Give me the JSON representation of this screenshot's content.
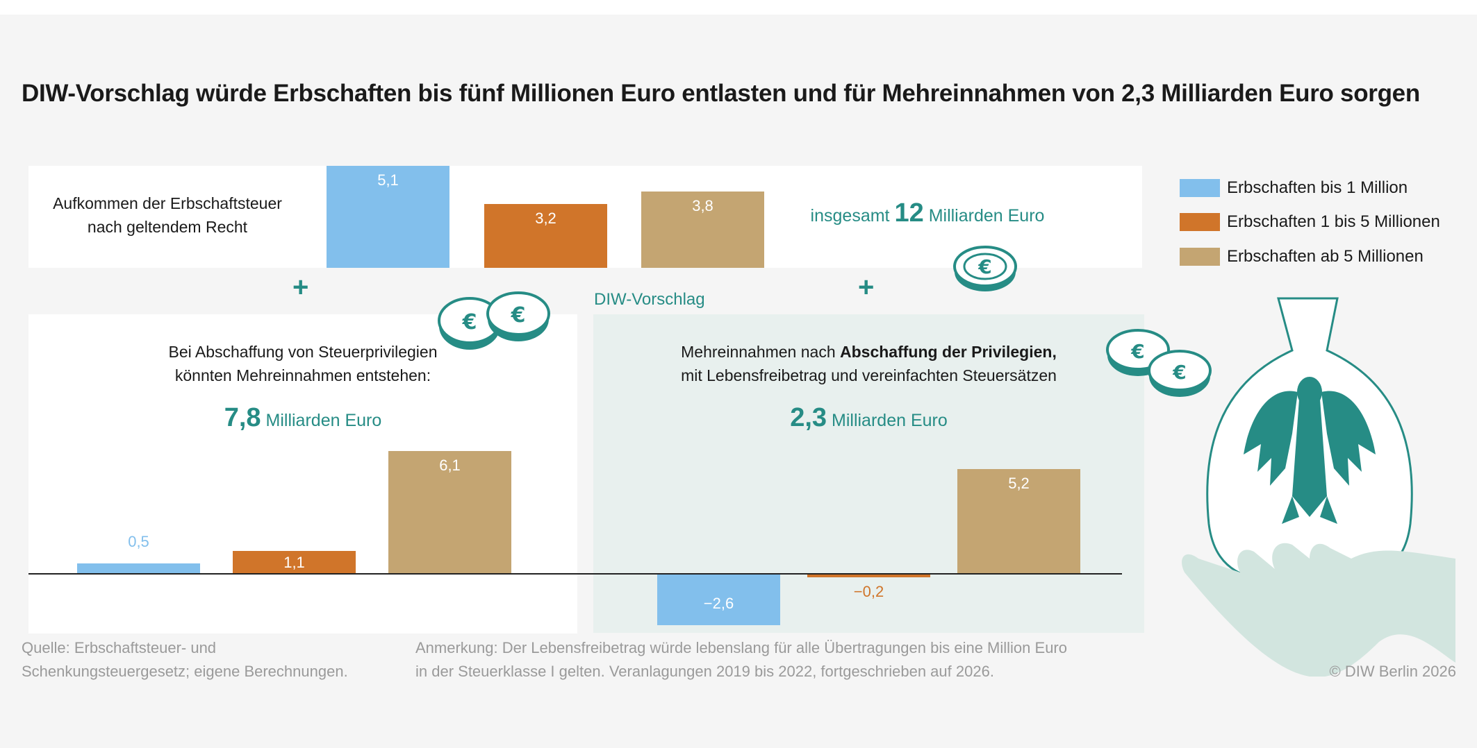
{
  "title": "DIW-Vorschlag würde Erbschaften bis fünf Millionen Euro entlasten und für Mehreinnahmen von 2,3 Milliarden Euro sorgen",
  "colors": {
    "bis_1": "#82bfec",
    "1_bis_5": "#d0752a",
    "ab_5": "#c4a572",
    "teal": "#268c85",
    "panel_right": "#e8f0ee"
  },
  "top_panel": {
    "label_line1": "Aufkommen der Erbschaftsteuer",
    "label_line2": "nach geltendem Recht",
    "total_prefix": "insgesamt",
    "total_value": "12",
    "total_suffix": "Milliarden Euro"
  },
  "plus_symbol": "+",
  "diw_label": "DIW-Vorschlag",
  "left_panel": {
    "line1": "Bei Abschaffung von Steuerprivilegien",
    "line2": "könnten Mehreinnahmen entstehen:",
    "value": "7,8",
    "unit": "Milliarden Euro"
  },
  "right_panel": {
    "line1_normal": "Mehreinnahmen nach ",
    "line1_bold": "Abschaffung der Privilegien,",
    "line2": "mit Lebensfreibetrag und vereinfachten Steuersätzen",
    "value": "2,3",
    "unit": "Milliarden Euro"
  },
  "chart_data": [
    {
      "type": "bar",
      "title": "Aufkommen der Erbschaftsteuer nach geltendem Recht",
      "categories": [
        "Erbschaften bis 1 Million",
        "Erbschaften 1 bis 5 Millionen",
        "Erbschaften ab 5 Millionen"
      ],
      "values": [
        5.1,
        3.2,
        3.8
      ],
      "labels": [
        "5,1",
        "3,2",
        "3,8"
      ],
      "unit": "Milliarden Euro"
    },
    {
      "type": "bar",
      "title": "Bei Abschaffung von Steuerprivilegien",
      "categories": [
        "Erbschaften bis 1 Million",
        "Erbschaften 1 bis 5 Millionen",
        "Erbschaften ab 5 Millionen"
      ],
      "values": [
        0.5,
        1.1,
        6.1
      ],
      "labels": [
        "0,5",
        "1,1",
        "6,1"
      ],
      "unit": "Milliarden Euro"
    },
    {
      "type": "bar",
      "title": "DIW-Vorschlag",
      "categories": [
        "Erbschaften bis 1 Million",
        "Erbschaften 1 bis 5 Millionen",
        "Erbschaften ab 5 Millionen"
      ],
      "values": [
        -2.6,
        -0.2,
        5.2
      ],
      "labels": [
        "−2,6",
        "−0,2",
        "5,2"
      ],
      "unit": "Milliarden Euro"
    }
  ],
  "legend": [
    "Erbschaften bis 1 Million",
    "Erbschaften 1 bis 5 Millionen",
    "Erbschaften ab 5 Millionen"
  ],
  "footer": {
    "source_line1": "Quelle: Erbschaftsteuer- und",
    "source_line2": "Schenkungsteuergesetz; eigene Berechnungen.",
    "note_line1": "Anmerkung: Der Lebensfreibetrag würde lebenslang für alle Übertragungen bis eine Million Euro",
    "note_line2": "in der Steuerklasse I gelten. Veranlagungen 2019 bis 2022, fortgeschrieben auf 2026.",
    "copyright": "© DIW Berlin 2026"
  }
}
